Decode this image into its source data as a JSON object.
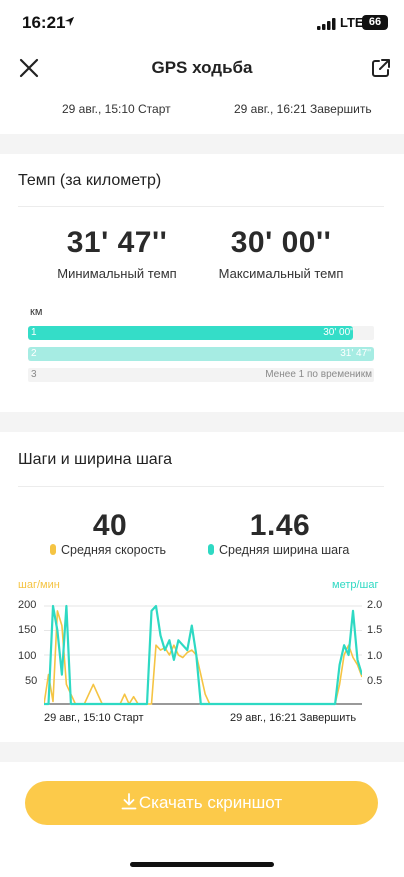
{
  "status_bar": {
    "time": "16:21",
    "network": "LTE",
    "battery": "66"
  },
  "header": {
    "title": "GPS ходьба"
  },
  "session": {
    "start": "29 авг., 15:10 Старт",
    "end": "29 авг., 16:21 Завершить"
  },
  "pace": {
    "title": "Темп (за километр)",
    "min_value": "31' 47''",
    "min_label": "Минимальный темп",
    "max_value": "30' 00''",
    "max_label": "Максимальный темп",
    "unit": "км",
    "rows": [
      {
        "index": "1",
        "value": "30' 00''",
        "fill": 0.94,
        "color": "#34ddc8"
      },
      {
        "index": "2",
        "value": "31' 47''",
        "fill": 1.0,
        "color": "#a6ece3"
      },
      {
        "index": "3",
        "value": "Менее 1 по временикм",
        "fill": 0,
        "color": "#f3f3f3"
      }
    ]
  },
  "steps": {
    "title": "Шаги и ширина шага",
    "speed_value": "40",
    "speed_label": "Средняя скорость",
    "stride_value": "1.46",
    "stride_label": "Средняя ширина шага",
    "left_axis_title": "шаг/мин",
    "right_axis_title": "метр/шаг",
    "left_ticks": [
      "200",
      "150",
      "100",
      "50"
    ],
    "right_ticks": [
      "2.0",
      "1.5",
      "1.0",
      "0.5"
    ],
    "x_start": "29 авг., 15:10 Старт",
    "x_end": "29 авг., 16:21 Завершить",
    "speed_color": "#f5c443",
    "stride_color": "#2ed9c3"
  },
  "chart_data": {
    "type": "line",
    "x": [
      0,
      1,
      2,
      3,
      4,
      5,
      6,
      7,
      8,
      9,
      10,
      11,
      12,
      13,
      14,
      15,
      16,
      17,
      18,
      19,
      20,
      21,
      22,
      23,
      24,
      25,
      26,
      27,
      28,
      29,
      30,
      31,
      32,
      33,
      34,
      35,
      36,
      37,
      38,
      39,
      40,
      41,
      42,
      43,
      44,
      45,
      46,
      47,
      48,
      49,
      50,
      51,
      52,
      53,
      54,
      55,
      56,
      57,
      58,
      59,
      60,
      61,
      62,
      63,
      64,
      65,
      66,
      67,
      68,
      69,
      70,
      71
    ],
    "series": [
      {
        "axis": "left",
        "values": [
          0,
          60,
          5,
          190,
          160,
          40,
          20,
          0,
          0,
          0,
          20,
          40,
          20,
          0,
          0,
          0,
          0,
          0,
          20,
          0,
          15,
          0,
          0,
          0,
          0,
          120,
          110,
          115,
          100,
          120,
          100,
          95,
          105,
          110,
          100,
          60,
          20,
          0,
          0,
          0,
          0,
          0,
          0,
          0,
          0,
          0,
          0,
          0,
          0,
          0,
          0,
          0,
          0,
          0,
          0,
          0,
          0,
          0,
          0,
          0,
          0,
          0,
          0,
          0,
          0,
          0,
          40,
          100,
          120,
          95,
          80,
          55
        ]
      },
      {
        "axis": "right",
        "values": [
          0.0,
          0.0,
          2.0,
          1.5,
          0.6,
          2.0,
          0.0,
          0.0,
          0.0,
          0.0,
          0.0,
          0.0,
          0.0,
          0.0,
          0.0,
          0.0,
          0.0,
          0.0,
          0.0,
          0.0,
          0.0,
          0.0,
          0.0,
          0.0,
          1.9,
          2.0,
          1.4,
          1.1,
          1.3,
          0.9,
          1.3,
          1.2,
          1.1,
          1.6,
          1.0,
          0.0,
          0.0,
          0.0,
          0.0,
          0.0,
          0.0,
          0.0,
          0.0,
          0.0,
          0.0,
          0.0,
          0.0,
          0.0,
          0.0,
          0.0,
          0.0,
          0.0,
          0.0,
          0.0,
          0.0,
          0.0,
          0.0,
          0.0,
          0.0,
          0.0,
          0.0,
          0.0,
          0.0,
          0.0,
          0.0,
          0.0,
          0.8,
          1.2,
          1.0,
          1.9,
          0.9,
          0.6
        ]
      }
    ],
    "ylim_left": [
      0,
      200
    ],
    "ylim_right": [
      0,
      2.0
    ]
  },
  "download": {
    "label": "Скачать скриншот"
  }
}
